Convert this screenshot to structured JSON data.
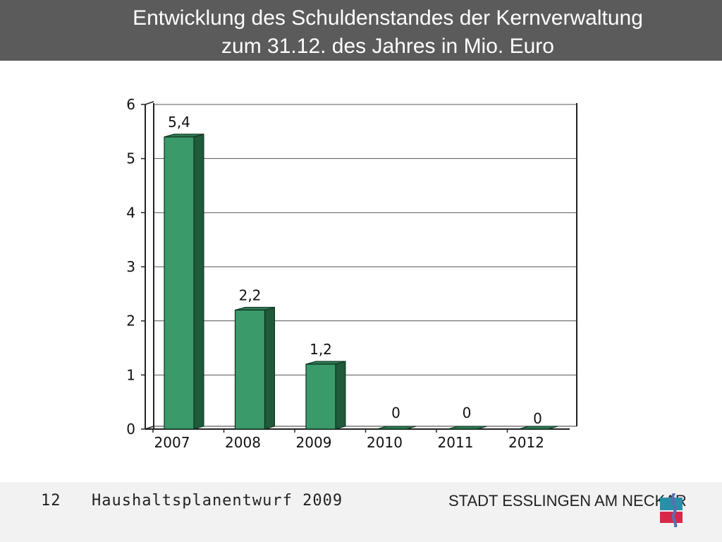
{
  "header": {
    "title_line_1": "Entwicklung des Schuldenstandes der Kernverwaltung",
    "title_line_2": "zum 31.12. des Jahres in Mio. Euro"
  },
  "chart_data": {
    "type": "bar",
    "title": "Entwicklung des Schuldenstandes der Kernverwaltung zum 31.12. des Jahres in Mio. Euro",
    "xlabel": "",
    "ylabel": "",
    "categories": [
      "2007",
      "2008",
      "2009",
      "2010",
      "2011",
      "2012"
    ],
    "values": [
      5.4,
      2.2,
      1.2,
      0,
      0,
      0
    ],
    "data_labels": [
      "5,4",
      "2,2",
      "1,2",
      "0",
      "0",
      "0"
    ],
    "ylim": [
      0,
      6
    ],
    "yticks": [
      "0",
      "1",
      "2",
      "3",
      "4",
      "5",
      "6"
    ],
    "grid": true,
    "legend": "none",
    "style": "3d-column",
    "colors": {
      "bar_front": "#3a9a6a",
      "bar_side": "#1f5a3a",
      "bar_top": "#2c7a52"
    }
  },
  "footer": {
    "page_number": "12",
    "document": "Haushaltsplanentwurf 2009",
    "organization": "STADT ESSLINGEN AM NECKAR"
  },
  "logo": {
    "icon": "city-logo-icon",
    "colors": {
      "top": "#2a8fa8",
      "bottom": "#d8284a",
      "swoosh": "#5a6fb0"
    }
  }
}
